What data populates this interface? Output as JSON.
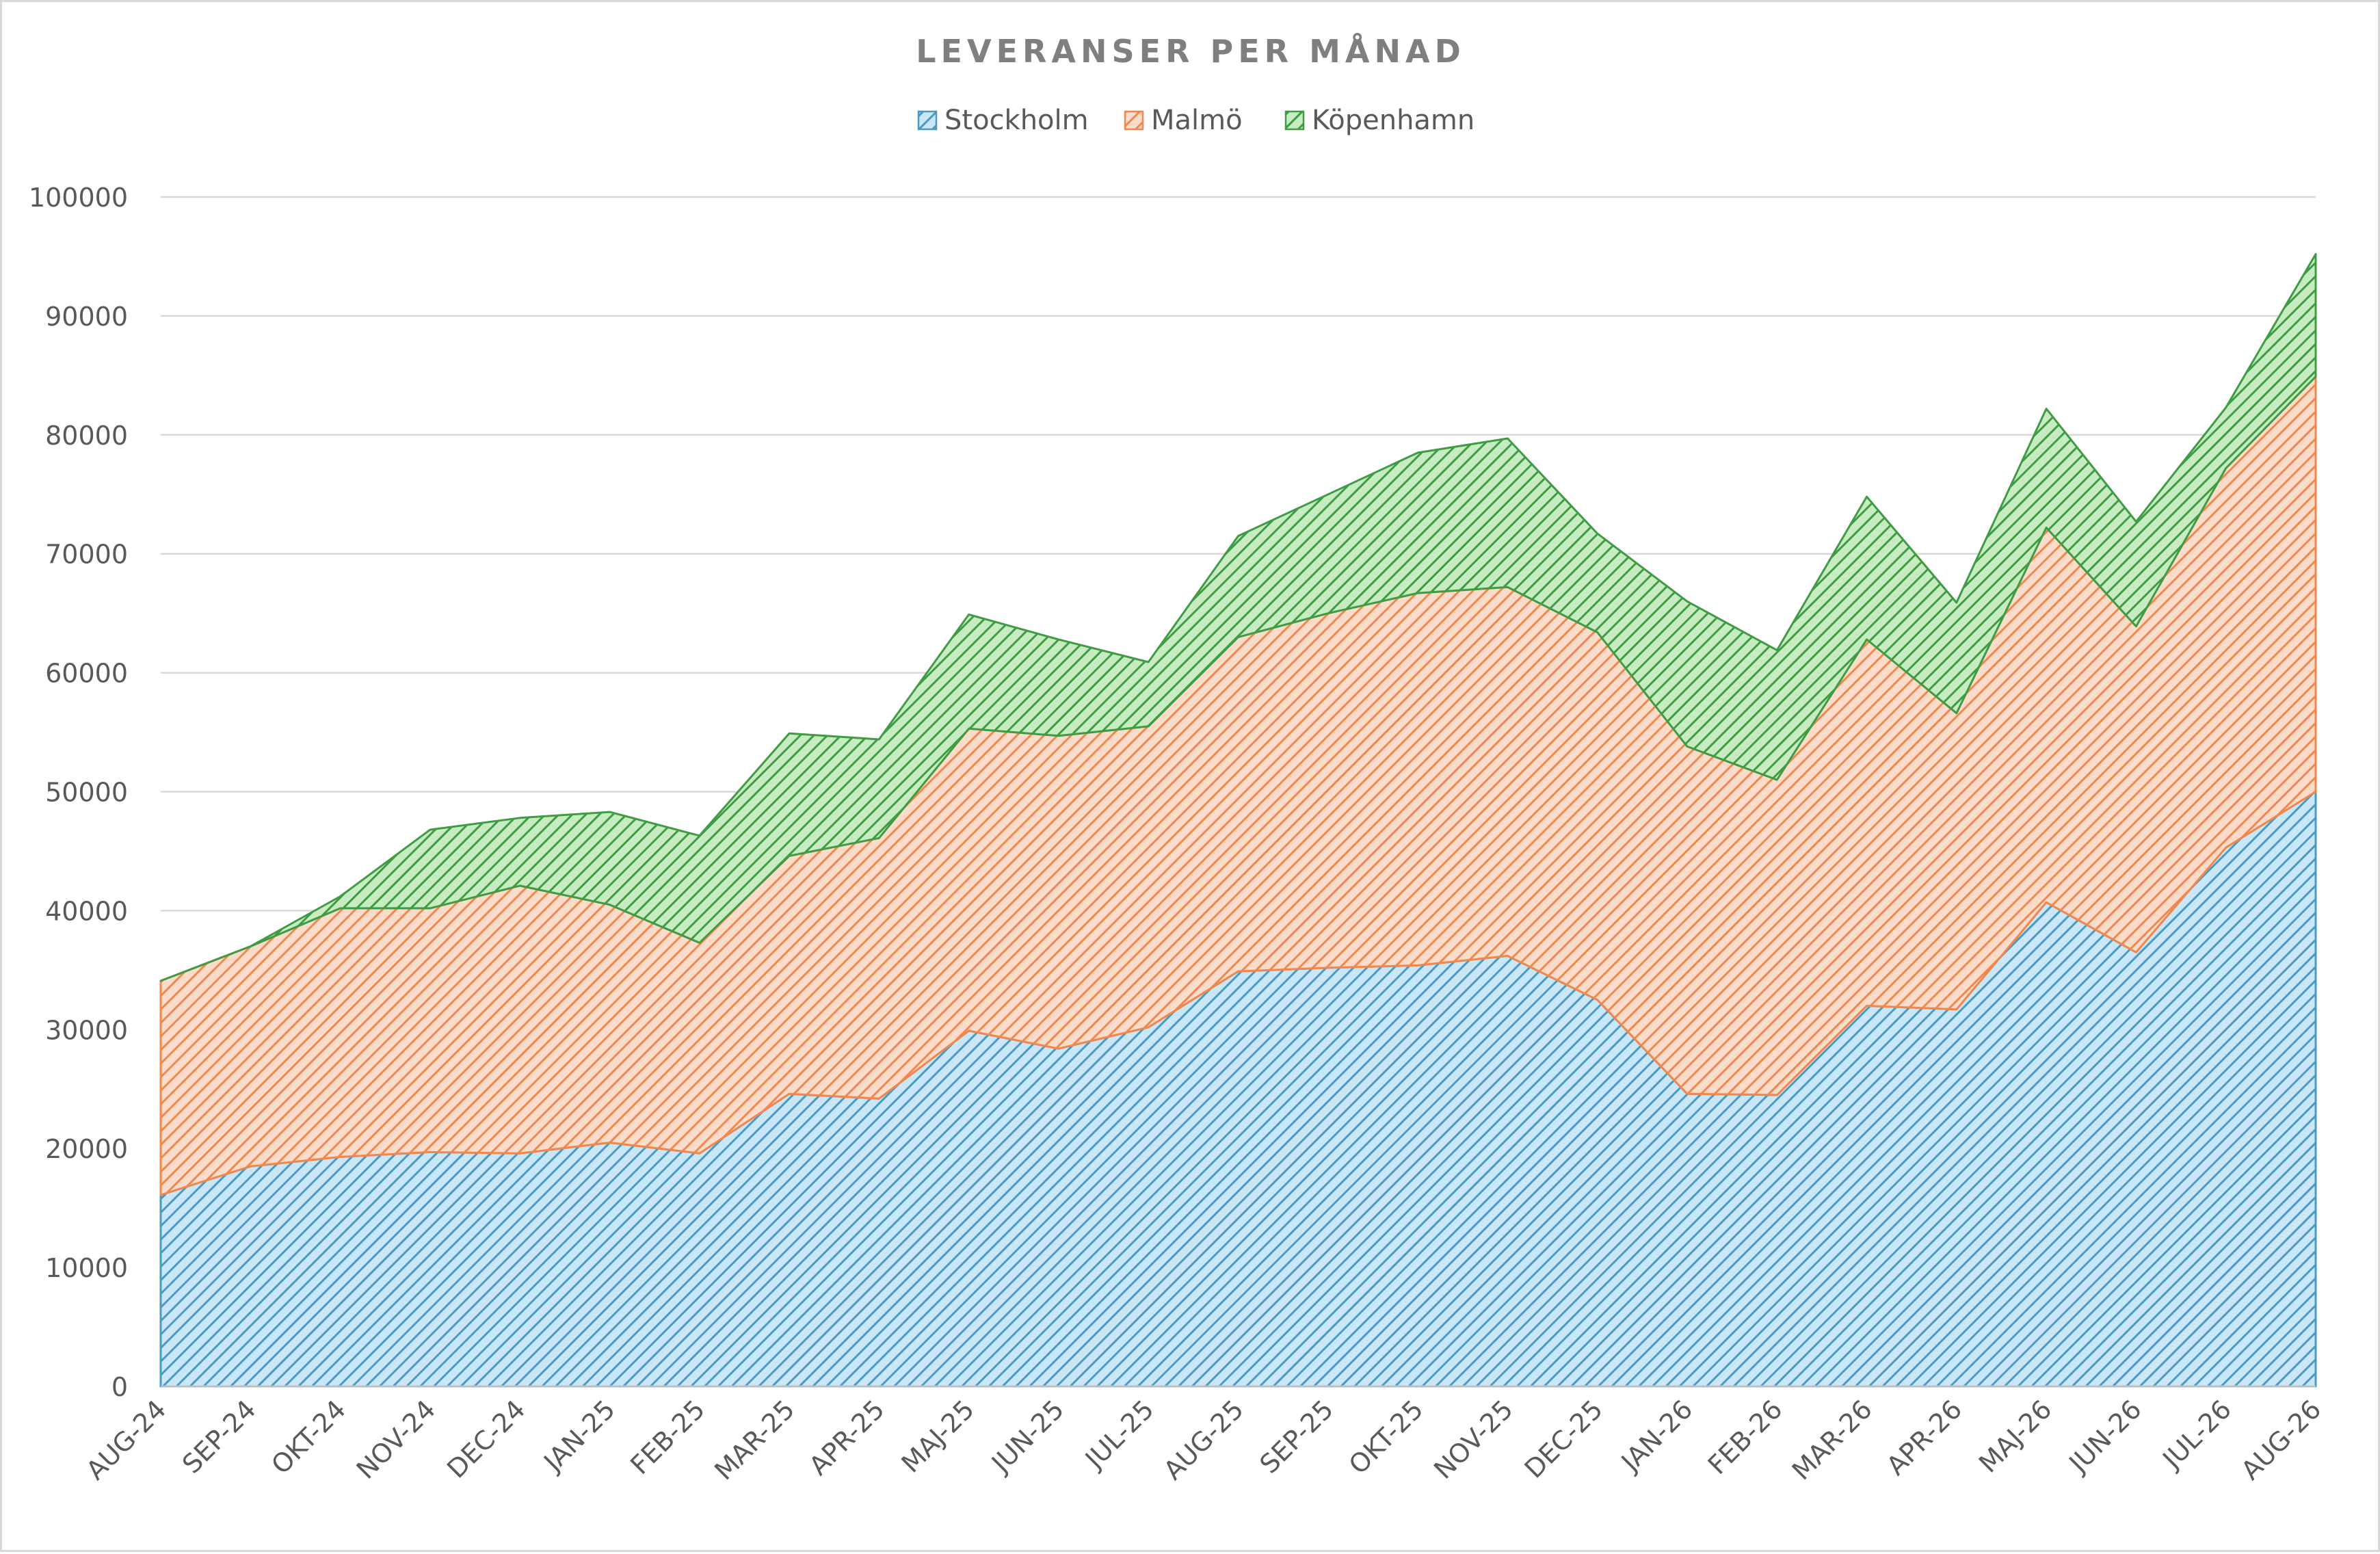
{
  "chart_data": {
    "type": "area",
    "stacked": true,
    "title": "LEVERANSER PER MÅNAD",
    "xlabel": "",
    "ylabel": "",
    "ylim": [
      0,
      100000
    ],
    "ytick_step": 10000,
    "grid": true,
    "legend_position": "top",
    "fill_style": "diagonal-hatch",
    "categories": [
      "AUG-24",
      "SEP-24",
      "OKT-24",
      "NOV-24",
      "DEC-24",
      "JAN-25",
      "FEB-25",
      "MAR-25",
      "APR-25",
      "MAJ-25",
      "JUN-25",
      "JUL-25",
      "AUG-25",
      "SEP-25",
      "OKT-25",
      "NOV-25",
      "DEC-25",
      "JAN-26",
      "FEB-26",
      "MAR-26",
      "APR-26",
      "MAJ-26",
      "JUN-26",
      "JUL-26",
      "AUG-26"
    ],
    "series": [
      {
        "name": "Stockholm",
        "color": "#4a9ac2",
        "fill": "#c9e7f6",
        "values": [
          16100,
          18500,
          19300,
          19700,
          19600,
          20500,
          19600,
          24600,
          24200,
          29900,
          28400,
          30200,
          34900,
          35200,
          35400,
          36200,
          32500,
          24600,
          24500,
          32000,
          31700,
          40700,
          36500,
          45300,
          50000
        ]
      },
      {
        "name": "Malmö",
        "color": "#f0884e",
        "fill": "#fbdccb",
        "values": [
          18000,
          18500,
          20900,
          20500,
          22500,
          20000,
          17700,
          20000,
          21900,
          25400,
          26300,
          25300,
          28100,
          29800,
          31300,
          31000,
          30900,
          29200,
          26500,
          30800,
          24900,
          31500,
          27400,
          31900,
          34900
        ]
      },
      {
        "name": "Köpenhamn",
        "color": "#3f9c45",
        "fill": "#c8ecc1",
        "values": [
          0,
          0,
          1000,
          6600,
          5700,
          7800,
          9000,
          10300,
          8300,
          9600,
          8100,
          5400,
          8500,
          10000,
          11800,
          12500,
          8300,
          12200,
          10900,
          12000,
          9300,
          10000,
          8800,
          5100,
          10300
        ]
      }
    ]
  }
}
